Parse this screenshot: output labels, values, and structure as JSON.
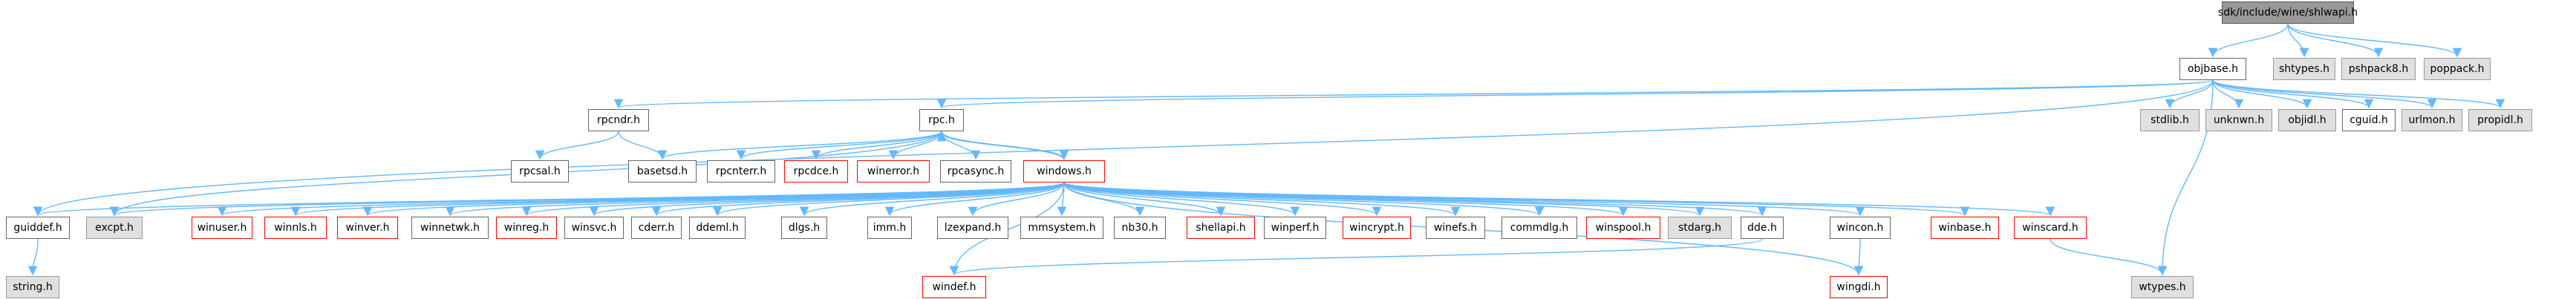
{
  "graph": {
    "nodes": [
      {
        "id": "shlwapi",
        "label": "sdk/include/wine/shlwapi.h",
        "style": "root"
      },
      {
        "id": "objbase",
        "label": "objbase.h",
        "style": "normal"
      },
      {
        "id": "shtypes",
        "label": "shtypes.h",
        "style": "gray"
      },
      {
        "id": "pshpack8",
        "label": "pshpack8.h",
        "style": "gray"
      },
      {
        "id": "poppack",
        "label": "poppack.h",
        "style": "gray"
      },
      {
        "id": "rpcndr",
        "label": "rpcndr.h",
        "style": "normal"
      },
      {
        "id": "rpc",
        "label": "rpc.h",
        "style": "normal"
      },
      {
        "id": "stdlib",
        "label": "stdlib.h",
        "style": "gray"
      },
      {
        "id": "unknwn",
        "label": "unknwn.h",
        "style": "gray"
      },
      {
        "id": "objidl",
        "label": "objidl.h",
        "style": "gray"
      },
      {
        "id": "cguid",
        "label": "cguid.h",
        "style": "normal"
      },
      {
        "id": "urlmon",
        "label": "urlmon.h",
        "style": "gray"
      },
      {
        "id": "propidl",
        "label": "propidl.h",
        "style": "gray"
      },
      {
        "id": "rpcsal",
        "label": "rpcsal.h",
        "style": "normal"
      },
      {
        "id": "basetsd",
        "label": "basetsd.h",
        "style": "normal"
      },
      {
        "id": "rpcnterr",
        "label": "rpcnterr.h",
        "style": "normal"
      },
      {
        "id": "rpcdce",
        "label": "rpcdce.h",
        "style": "red"
      },
      {
        "id": "winerror",
        "label": "winerror.h",
        "style": "red"
      },
      {
        "id": "rpcasync",
        "label": "rpcasync.h",
        "style": "normal"
      },
      {
        "id": "windows",
        "label": "windows.h",
        "style": "red"
      },
      {
        "id": "guiddef",
        "label": "guiddef.h",
        "style": "normal"
      },
      {
        "id": "excpt",
        "label": "excpt.h",
        "style": "gray"
      },
      {
        "id": "winuser",
        "label": "winuser.h",
        "style": "red"
      },
      {
        "id": "winnls",
        "label": "winnls.h",
        "style": "red"
      },
      {
        "id": "winver",
        "label": "winver.h",
        "style": "red"
      },
      {
        "id": "winnetwk",
        "label": "winnetwk.h",
        "style": "normal"
      },
      {
        "id": "winreg",
        "label": "winreg.h",
        "style": "red"
      },
      {
        "id": "winsvc",
        "label": "winsvc.h",
        "style": "normal"
      },
      {
        "id": "cderr",
        "label": "cderr.h",
        "style": "normal"
      },
      {
        "id": "ddeml",
        "label": "ddeml.h",
        "style": "normal"
      },
      {
        "id": "dlgs",
        "label": "dlgs.h",
        "style": "normal"
      },
      {
        "id": "imm",
        "label": "imm.h",
        "style": "normal"
      },
      {
        "id": "lzexpand",
        "label": "lzexpand.h",
        "style": "normal"
      },
      {
        "id": "mmsystem",
        "label": "mmsystem.h",
        "style": "normal"
      },
      {
        "id": "nb30",
        "label": "nb30.h",
        "style": "normal"
      },
      {
        "id": "shellapi",
        "label": "shellapi.h",
        "style": "red"
      },
      {
        "id": "winperf",
        "label": "winperf.h",
        "style": "normal"
      },
      {
        "id": "wincrypt",
        "label": "wincrypt.h",
        "style": "red"
      },
      {
        "id": "winefs",
        "label": "winefs.h",
        "style": "normal"
      },
      {
        "id": "commdlg",
        "label": "commdlg.h",
        "style": "normal"
      },
      {
        "id": "winspool",
        "label": "winspool.h",
        "style": "red"
      },
      {
        "id": "stdarg",
        "label": "stdarg.h",
        "style": "gray"
      },
      {
        "id": "dde",
        "label": "dde.h",
        "style": "normal"
      },
      {
        "id": "wincon",
        "label": "wincon.h",
        "style": "normal"
      },
      {
        "id": "winbase",
        "label": "winbase.h",
        "style": "red"
      },
      {
        "id": "winscard",
        "label": "winscard.h",
        "style": "red"
      },
      {
        "id": "string",
        "label": "string.h",
        "style": "gray"
      },
      {
        "id": "windef",
        "label": "windef.h",
        "style": "red"
      },
      {
        "id": "wingdi",
        "label": "wingdi.h",
        "style": "red"
      },
      {
        "id": "wtypes",
        "label": "wtypes.h",
        "style": "gray"
      }
    ],
    "edges": [
      [
        "shlwapi",
        "objbase"
      ],
      [
        "shlwapi",
        "shtypes"
      ],
      [
        "shlwapi",
        "pshpack8"
      ],
      [
        "shlwapi",
        "poppack"
      ],
      [
        "objbase",
        "rpcndr"
      ],
      [
        "objbase",
        "rpc"
      ],
      [
        "objbase",
        "stdlib"
      ],
      [
        "objbase",
        "unknwn"
      ],
      [
        "objbase",
        "objidl"
      ],
      [
        "objbase",
        "cguid"
      ],
      [
        "objbase",
        "urlmon"
      ],
      [
        "objbase",
        "propidl"
      ],
      [
        "objbase",
        "guiddef"
      ],
      [
        "objbase",
        "wtypes"
      ],
      [
        "rpcndr",
        "rpcsal"
      ],
      [
        "rpcndr",
        "basetsd"
      ],
      [
        "rpc",
        "basetsd"
      ],
      [
        "rpc",
        "rpcnterr"
      ],
      [
        "rpc",
        "rpcdce"
      ],
      [
        "rpc",
        "winerror"
      ],
      [
        "rpc",
        "rpcasync"
      ],
      [
        "rpc",
        "windows"
      ],
      [
        "rpc",
        "excpt"
      ],
      [
        "windows",
        "rpc"
      ],
      [
        "windows",
        "excpt"
      ],
      [
        "windows",
        "guiddef"
      ],
      [
        "windows",
        "winuser"
      ],
      [
        "windows",
        "winnls"
      ],
      [
        "windows",
        "winver"
      ],
      [
        "windows",
        "winnetwk"
      ],
      [
        "windows",
        "winreg"
      ],
      [
        "windows",
        "winsvc"
      ],
      [
        "windows",
        "cderr"
      ],
      [
        "windows",
        "ddeml"
      ],
      [
        "windows",
        "dlgs"
      ],
      [
        "windows",
        "imm"
      ],
      [
        "windows",
        "lzexpand"
      ],
      [
        "windows",
        "mmsystem"
      ],
      [
        "windows",
        "nb30"
      ],
      [
        "windows",
        "shellapi"
      ],
      [
        "windows",
        "winperf"
      ],
      [
        "windows",
        "wincrypt"
      ],
      [
        "windows",
        "winefs"
      ],
      [
        "windows",
        "commdlg"
      ],
      [
        "windows",
        "winspool"
      ],
      [
        "windows",
        "stdarg"
      ],
      [
        "windows",
        "dde"
      ],
      [
        "windows",
        "wincon"
      ],
      [
        "windows",
        "winbase"
      ],
      [
        "windows",
        "winscard"
      ],
      [
        "windows",
        "windef"
      ],
      [
        "windows",
        "wingdi"
      ],
      [
        "guiddef",
        "string"
      ],
      [
        "dde",
        "windef"
      ],
      [
        "wincon",
        "wingdi"
      ],
      [
        "winscard",
        "wtypes"
      ]
    ]
  }
}
